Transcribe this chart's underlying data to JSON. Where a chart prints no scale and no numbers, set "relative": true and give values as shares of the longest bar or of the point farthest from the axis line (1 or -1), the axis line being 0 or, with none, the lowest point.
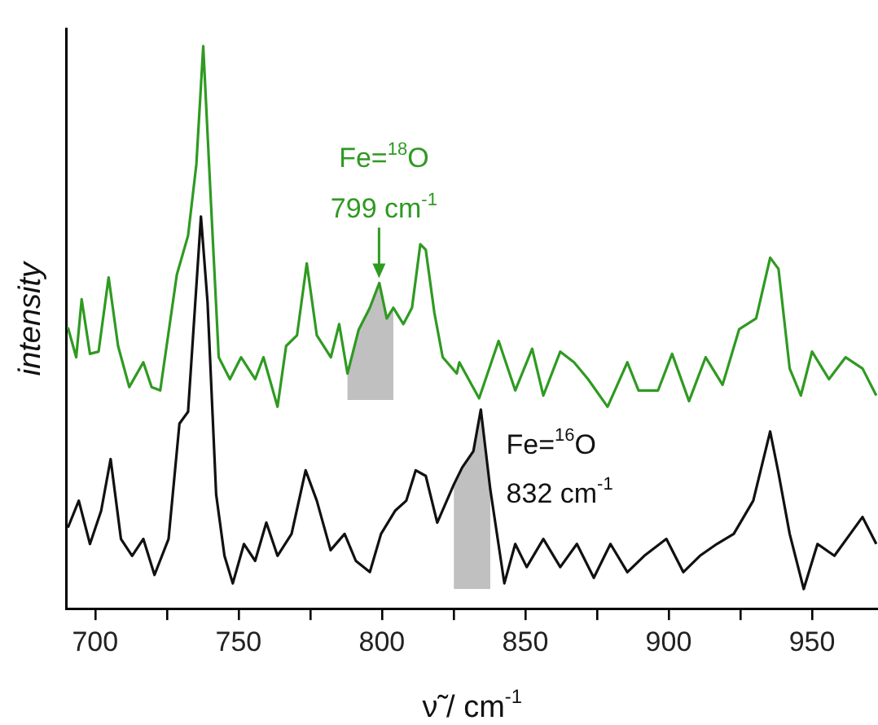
{
  "chart_data": {
    "type": "line",
    "relative": true,
    "xlabel": "ν̃ / cm$^{-1}$",
    "ylabel": "intensity",
    "xlim": [
      690,
      973
    ],
    "xticks": [
      700,
      {
        "value": 725,
        "label": null
      },
      750,
      {
        "value": 775,
        "label": null
      },
      800,
      {
        "value": 825,
        "label": null
      },
      850,
      {
        "value": 875,
        "label": null
      },
      900,
      {
        "value": 925,
        "label": null
      },
      950
    ],
    "legend": false,
    "grid": false,
    "series": [
      {
        "color": "#2f9a22",
        "x": [
          690.5,
          693.4,
          695.3,
          698.2,
          701.2,
          704.7,
          708,
          711.9,
          716.8,
          719.7,
          722.7,
          728.5,
          732.4,
          735.3,
          737.7,
          740.2,
          743.1,
          747,
          750.9,
          755.8,
          758.7,
          763.6,
          766.6,
          770.4,
          773.8,
          777.3,
          782.2,
          785.1,
          788,
          791.9,
          795.8,
          799.1,
          801.7,
          804,
          807.5,
          810.5,
          813.4,
          815.3,
          818.3,
          821.2,
          826.1,
          827,
          833.9,
          840.7,
          846.5,
          852.4,
          856.3,
          862.2,
          867,
          871.9,
          878.7,
          885.6,
          889.5,
          896.3,
          901.2,
          907.1,
          912.9,
          918.8,
          924.6,
          930.5,
          935.4,
          938.3,
          942.2,
          946.1,
          950,
          955.9,
          961.7,
          967.6,
          972.4
        ],
        "values": [
          0.5,
          0.447,
          0.55,
          0.453,
          0.457,
          0.589,
          0.467,
          0.394,
          0.438,
          0.394,
          0.388,
          0.594,
          0.663,
          0.79,
          1,
          0.741,
          0.447,
          0.408,
          0.447,
          0.408,
          0.447,
          0.359,
          0.467,
          0.486,
          0.614,
          0.486,
          0.447,
          0.506,
          0.418,
          0.496,
          0.535,
          0.579,
          0.516,
          0.535,
          0.506,
          0.535,
          0.648,
          0.638,
          0.526,
          0.447,
          0.418,
          0.438,
          0.374,
          0.476,
          0.388,
          0.462,
          0.379,
          0.457,
          0.438,
          0.408,
          0.359,
          0.438,
          0.388,
          0.388,
          0.453,
          0.369,
          0.447,
          0.398,
          0.497,
          0.516,
          0.624,
          0.604,
          0.427,
          0.379,
          0.457,
          0.408,
          0.447,
          0.427,
          0.379
        ],
        "lower": [
          null,
          null,
          null,
          null,
          null,
          null,
          null,
          null,
          null,
          null,
          null,
          null,
          null,
          null,
          null,
          null,
          null,
          null,
          null,
          null,
          null,
          null,
          null,
          null,
          null,
          null,
          null,
          null,
          0.371,
          0.371,
          0.371,
          0.371,
          0.371,
          0.371,
          null,
          null,
          null,
          null,
          null,
          null,
          null,
          null,
          null,
          null,
          null,
          null,
          null,
          null,
          null,
          null,
          null,
          null,
          null,
          null,
          null,
          null,
          null,
          null,
          null,
          null,
          null,
          null,
          null,
          null,
          null,
          null,
          null,
          null,
          null
        ],
        "upper": [
          null,
          null,
          null,
          null,
          null,
          null,
          null,
          null,
          null,
          null,
          null,
          null,
          null,
          null,
          null,
          null,
          null,
          null,
          null,
          null,
          null,
          null,
          null,
          null,
          null,
          null,
          null,
          null,
          0.418,
          0.496,
          0.535,
          0.579,
          0.516,
          0.535,
          null,
          null,
          null,
          null,
          null,
          null,
          null,
          null,
          null,
          null,
          null,
          null,
          null,
          null,
          null,
          null,
          null,
          null,
          null,
          null,
          null,
          null,
          null,
          null,
          null,
          null,
          null,
          null,
          null,
          null,
          null,
          null,
          null,
          null,
          null
        ]
      },
      {
        "color": "#111111",
        "x": [
          690.5,
          694.3,
          698.2,
          702.1,
          705.4,
          709,
          712.9,
          716.8,
          720.7,
          725.6,
          729.4,
          732.4,
          736.9,
          739.2,
          742.2,
          745.1,
          748,
          751.9,
          755.8,
          759.7,
          763.6,
          768.5,
          773.4,
          777.3,
          782.1,
          787,
          790.9,
          795.8,
          799.7,
          804.6,
          808.5,
          811.8,
          815.3,
          819.3,
          825.1,
          828,
          831.9,
          834.5,
          837.8,
          842.7,
          846.5,
          850.5,
          856.3,
          862.2,
          868,
          873.9,
          879.7,
          885.6,
          891.5,
          899.2,
          905.1,
          910.9,
          916.8,
          922.7,
          929.5,
          935.4,
          938.3,
          942.2,
          947.1,
          951.9,
          957.8,
          967.6,
          972.4
        ],
        "values": [
          0.144,
          0.192,
          0.115,
          0.174,
          0.266,
          0.124,
          0.094,
          0.124,
          0.06,
          0.124,
          0.329,
          0.35,
          0.697,
          0.545,
          0.203,
          0.094,
          0.045,
          0.115,
          0.085,
          0.153,
          0.094,
          0.133,
          0.246,
          0.192,
          0.104,
          0.133,
          0.085,
          0.065,
          0.133,
          0.174,
          0.192,
          0.246,
          0.236,
          0.153,
          0.221,
          0.251,
          0.28,
          0.354,
          0.212,
          0.045,
          0.115,
          0.074,
          0.124,
          0.074,
          0.115,
          0.055,
          0.115,
          0.065,
          0.094,
          0.124,
          0.065,
          0.094,
          0.115,
          0.133,
          0.192,
          0.315,
          0.241,
          0.133,
          0.035,
          0.115,
          0.094,
          0.163,
          0.115
        ],
        "lower": [
          null,
          null,
          null,
          null,
          null,
          null,
          null,
          null,
          null,
          null,
          null,
          null,
          null,
          null,
          null,
          null,
          null,
          null,
          null,
          null,
          null,
          null,
          null,
          null,
          null,
          null,
          null,
          null,
          null,
          null,
          null,
          null,
          null,
          null,
          0.035,
          0.035,
          0.035,
          0.035,
          0.035,
          null,
          null,
          null,
          null,
          null,
          null,
          null,
          null,
          null,
          null,
          null,
          null,
          null,
          null,
          null,
          null,
          null,
          null,
          null,
          null,
          null,
          null,
          null,
          null
        ],
        "upper": [
          null,
          null,
          null,
          null,
          null,
          null,
          null,
          null,
          null,
          null,
          null,
          null,
          null,
          null,
          null,
          null,
          null,
          null,
          null,
          null,
          null,
          null,
          null,
          null,
          null,
          null,
          null,
          null,
          null,
          null,
          null,
          null,
          null,
          null,
          0.221,
          0.251,
          0.28,
          0.354,
          0.212,
          null,
          null,
          null,
          null,
          null,
          null,
          null,
          null,
          null,
          null,
          null,
          null,
          null,
          null,
          null,
          null,
          null,
          null,
          null,
          null,
          null,
          null,
          null,
          null
        ]
      }
    ],
    "annotations": [
      {
        "text": "Fe=$^{18}$O\n799 cm$^{-1}$",
        "x": 799,
        "y": 0.579
      },
      {
        "text": "Fe=$^{16}$O\n832 cm$^{-1}$",
        "x": 832,
        "y": 0.354
      }
    ]
  }
}
